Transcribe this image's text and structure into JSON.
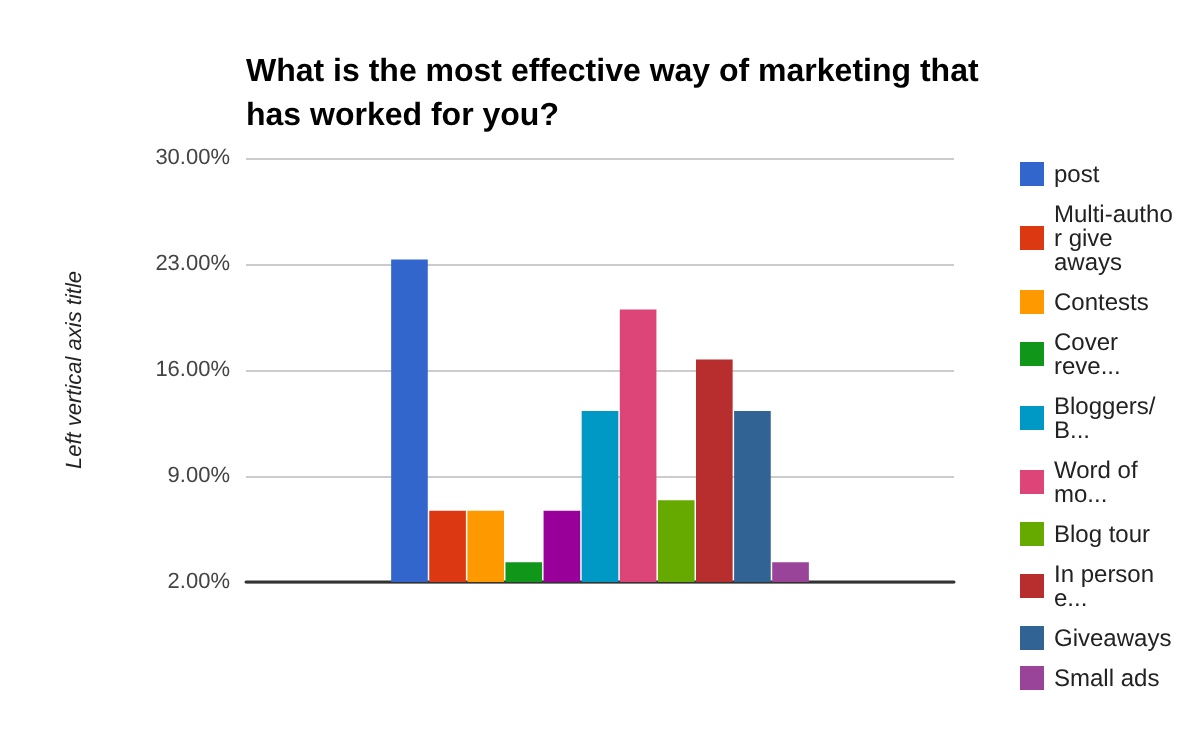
{
  "chart_data": {
    "type": "bar",
    "title": "What is the most effective way of marketing that has worked for you?",
    "ylabel": "Left vertical axis title",
    "categories": [
      null
    ],
    "series": [
      {
        "name": "post",
        "color": "#3366cc",
        "values": [
          23.3
        ]
      },
      {
        "name": "Multi-author give aways",
        "color": "#dc3912",
        "values": [
          6.7
        ]
      },
      {
        "name": "Contests",
        "color": "#ff9900",
        "values": [
          6.7
        ]
      },
      {
        "name": "Cover reve...",
        "color": "#109618",
        "values": [
          3.3
        ]
      },
      {
        "color": "#990099",
        "values": [
          6.7
        ]
      },
      {
        "name": "Bloggers/B...",
        "color": "#0099c6",
        "values": [
          13.3
        ]
      },
      {
        "name": "Word of mo...",
        "color": "#dd4477",
        "values": [
          20
        ]
      },
      {
        "name": "Blog tour",
        "color": "#66aa00",
        "values": [
          7.4
        ]
      },
      {
        "name": "In person e...",
        "color": "#b82e2e",
        "values": [
          16.7
        ]
      },
      {
        "name": "Giveaways",
        "color": "#316395",
        "values": [
          13.3
        ]
      },
      {
        "name": "Small ads",
        "color": "#994499",
        "values": [
          3.3
        ]
      }
    ],
    "ylim": [
      2,
      30
    ],
    "yticks": [
      {
        "value": 2,
        "label": "2.00%"
      },
      {
        "value": 9,
        "label": "9.00%"
      },
      {
        "value": 16,
        "label": "16.00%"
      },
      {
        "value": 23,
        "label": "23.00%"
      },
      {
        "value": 30,
        "label": "30.00%"
      }
    ],
    "grid": "y",
    "legend": "right"
  }
}
